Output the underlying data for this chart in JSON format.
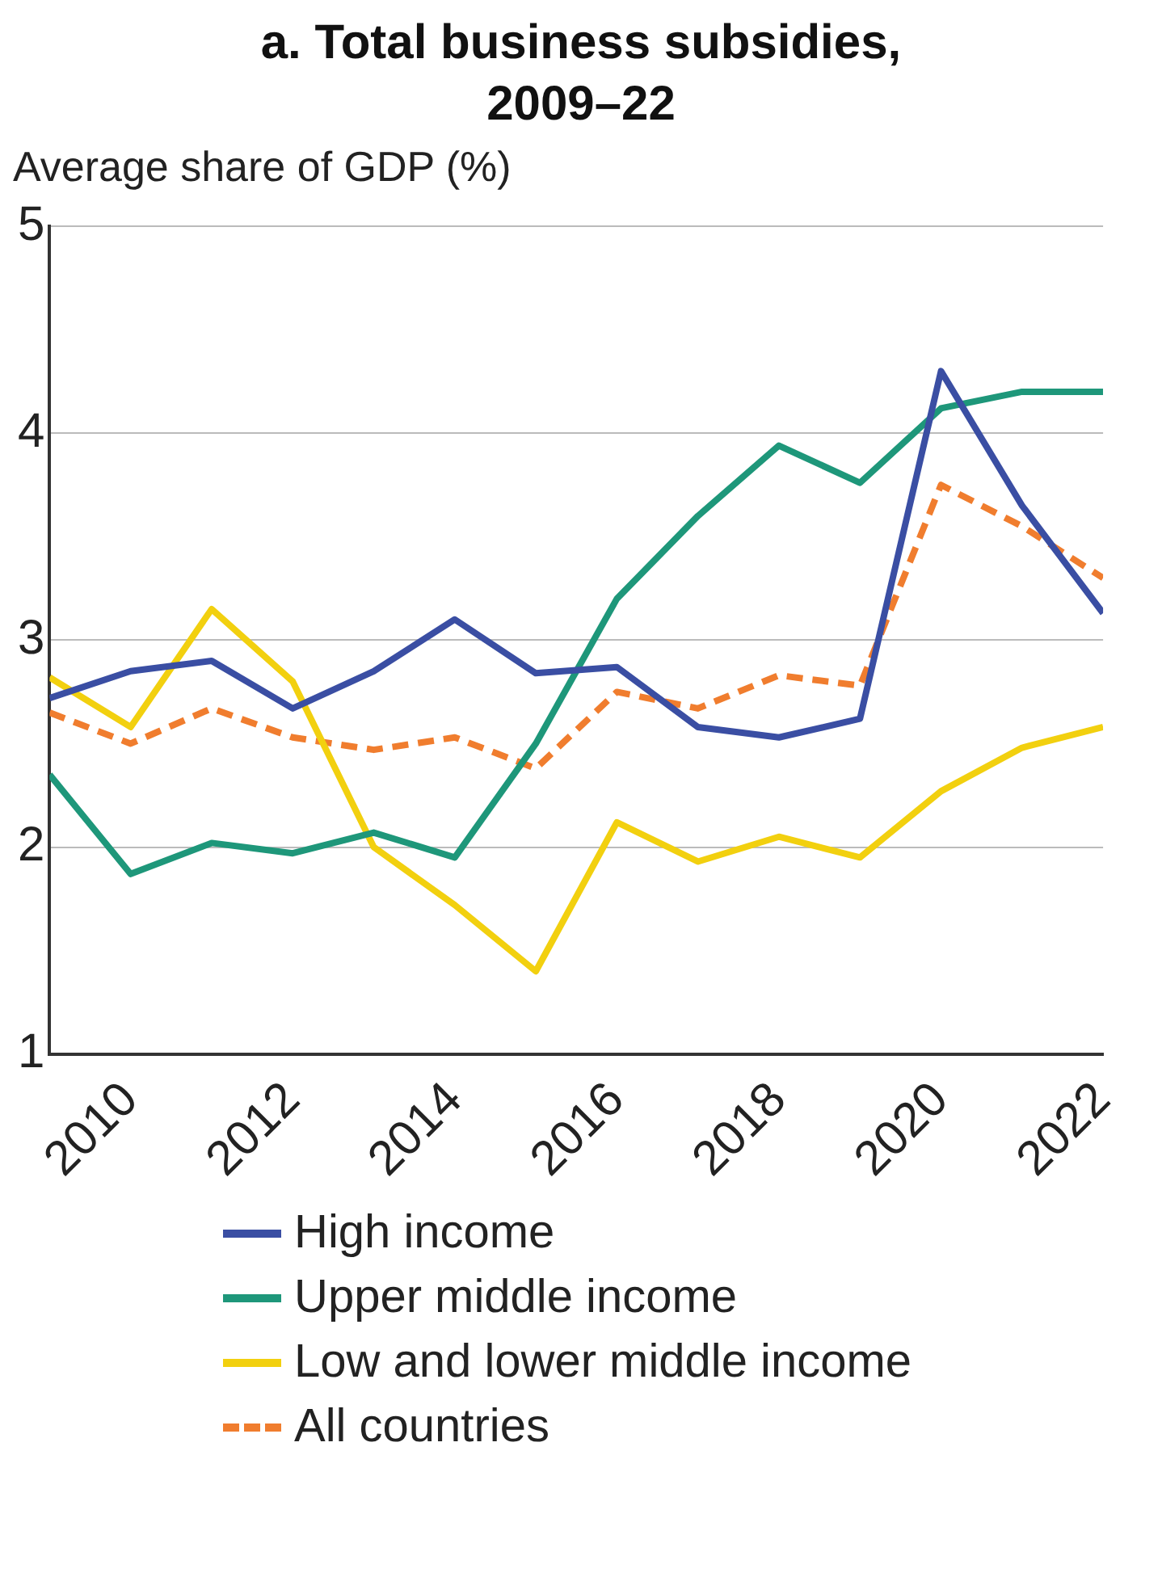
{
  "chart_data": {
    "type": "line",
    "title": "a. Total business subsidies, 2009–22",
    "ylabel": "Average share of GDP (%)",
    "x": [
      2009,
      2010,
      2011,
      2012,
      2013,
      2014,
      2015,
      2016,
      2017,
      2018,
      2019,
      2020,
      2021,
      2022
    ],
    "series": [
      {
        "name": "High income",
        "color": "#3a4ea3",
        "values": [
          2.72,
          2.85,
          2.9,
          2.67,
          2.85,
          3.1,
          2.84,
          2.87,
          2.58,
          2.53,
          2.62,
          4.3,
          3.65,
          3.13
        ]
      },
      {
        "name": "Upper middle income",
        "color": "#1e977a",
        "values": [
          2.35,
          1.87,
          2.02,
          1.97,
          2.07,
          1.95,
          2.5,
          3.2,
          3.6,
          3.94,
          3.76,
          4.12,
          4.2,
          4.2
        ]
      },
      {
        "name": "Low and lower middle income",
        "color": "#f2d00f",
        "values": [
          2.82,
          2.58,
          3.15,
          2.8,
          2.0,
          1.72,
          1.4,
          2.12,
          1.93,
          2.05,
          1.95,
          2.27,
          2.48,
          2.58
        ]
      },
      {
        "name": "All countries",
        "color": "#f07d2e",
        "line_style": "dashed",
        "values": [
          2.65,
          2.5,
          2.67,
          2.53,
          2.47,
          2.53,
          2.38,
          2.75,
          2.67,
          2.83,
          2.78,
          3.75,
          3.55,
          3.3
        ]
      }
    ],
    "xlim": [
      2009,
      2022
    ],
    "xticks": [
      2010,
      2012,
      2014,
      2016,
      2018,
      2020,
      2022
    ],
    "ylim": [
      1,
      5
    ],
    "yticks": [
      1,
      2,
      3,
      4,
      5
    ],
    "grid": "y",
    "legend": "bottom"
  }
}
